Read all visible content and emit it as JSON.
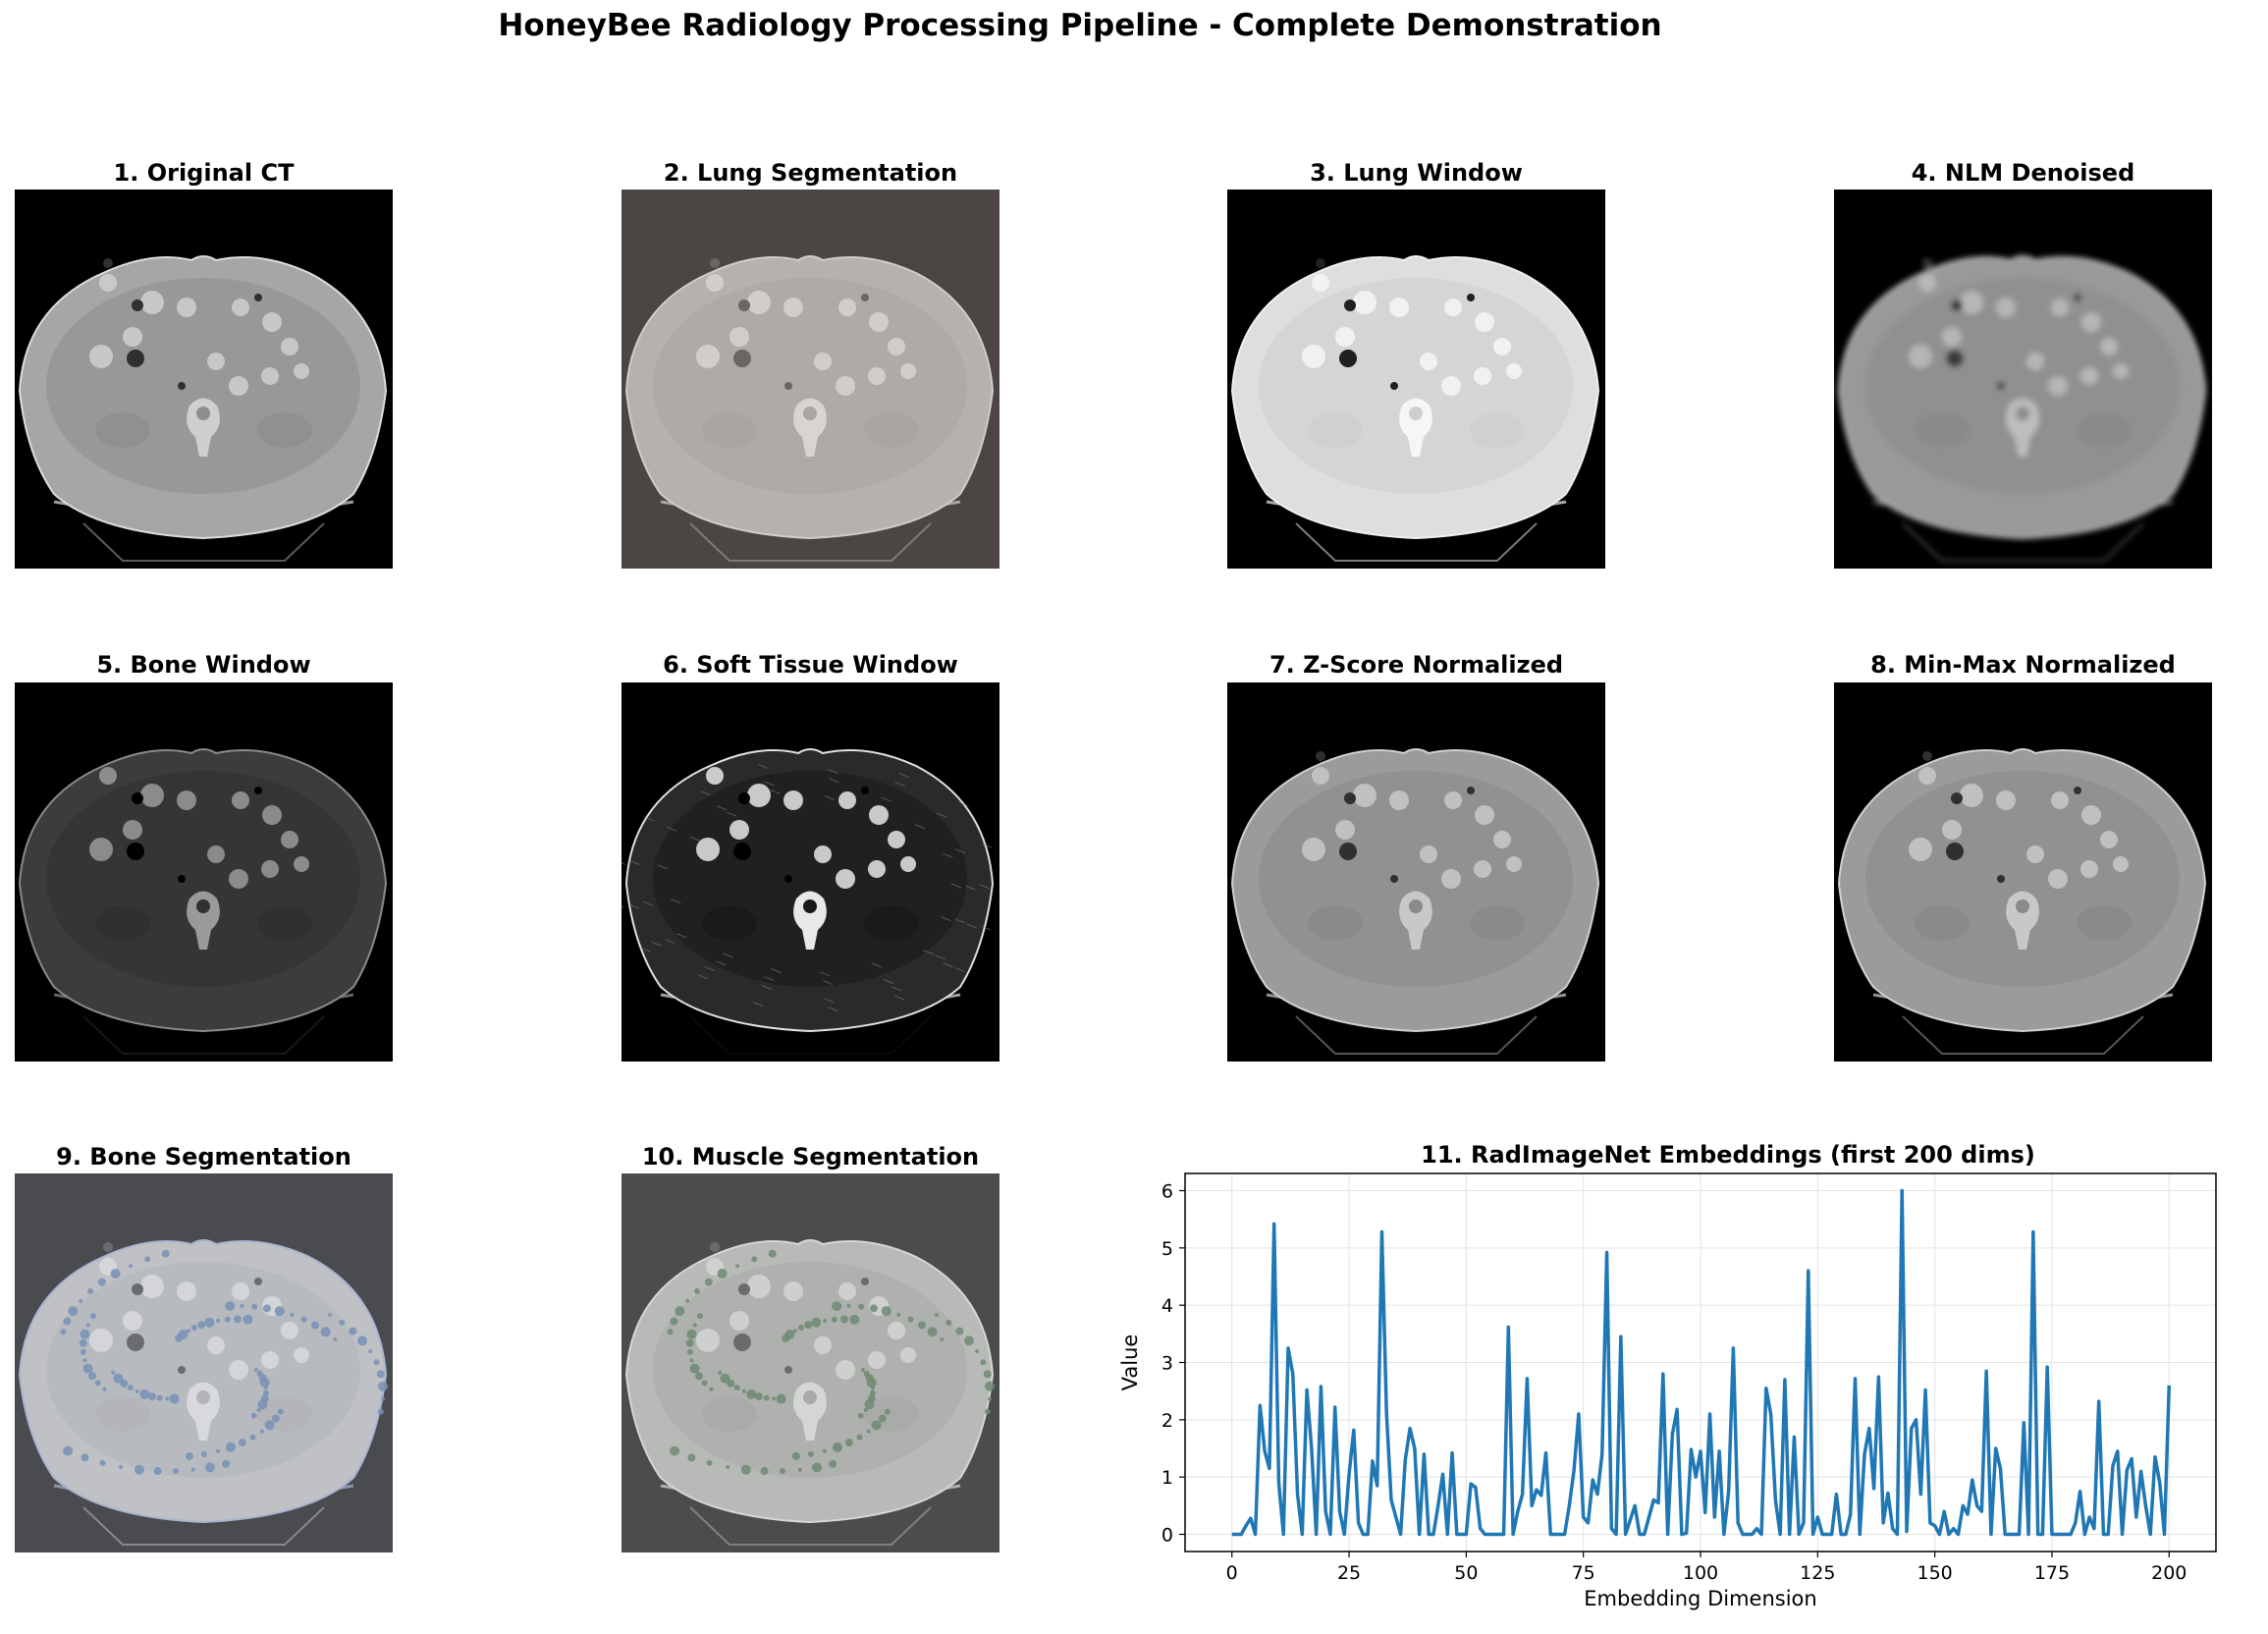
{
  "figure": {
    "title": "HoneyBee Radiology Processing Pipeline - Complete Demonstration"
  },
  "panels": [
    {
      "title": "1. Original CT",
      "style": "original",
      "background": "#000000"
    },
    {
      "title": "2. Lung Segmentation",
      "style": "lungseg",
      "background": "#4b4644"
    },
    {
      "title": "3. Lung Window",
      "style": "lungwin",
      "background": "#000000"
    },
    {
      "title": "4. NLM Denoised",
      "style": "denoised",
      "background": "#000000"
    },
    {
      "title": "5. Bone Window",
      "style": "bone",
      "background": "#000000"
    },
    {
      "title": "6. Soft Tissue Window",
      "style": "soft",
      "background": "#000000"
    },
    {
      "title": "7. Z-Score Normalized",
      "style": "zscore",
      "background": "#000000"
    },
    {
      "title": "8. Min-Max Normalized",
      "style": "minmax",
      "background": "#000000"
    },
    {
      "title": "9. Bone Segmentation",
      "style": "boneseg",
      "background": "#4a4b4f"
    },
    {
      "title": "10. Muscle Segmentation",
      "style": "muscleseg",
      "background": "#4b4d4a"
    }
  ],
  "chart_data": {
    "type": "line",
    "title": "11. RadImageNet Embeddings (first 200 dims)",
    "xlabel": "Embedding Dimension",
    "ylabel": "Value",
    "xlim": [
      -10,
      210
    ],
    "ylim": [
      -0.3,
      6.3
    ],
    "xticks": [
      0,
      25,
      50,
      75,
      100,
      125,
      150,
      175,
      200
    ],
    "yticks": [
      0,
      1,
      2,
      3,
      4,
      5,
      6
    ],
    "grid": true,
    "line_color": "#1f77b4",
    "series": [
      {
        "x_start": 0,
        "values": [
          0,
          0,
          0,
          0.15,
          0.28,
          0,
          2.25,
          1.45,
          1.15,
          5.42,
          0.9,
          0,
          3.25,
          2.8,
          0.7,
          0,
          2.52,
          1.5,
          0,
          2.58,
          0.4,
          0,
          2.22,
          0.4,
          0,
          1.05,
          1.82,
          0.2,
          0,
          0,
          1.28,
          0.85,
          5.28,
          2.1,
          0.6,
          0.3,
          0,
          1.3,
          1.85,
          1.5,
          0,
          1.4,
          0,
          0,
          0.5,
          1.05,
          0,
          1.42,
          0,
          0,
          0,
          0.88,
          0.82,
          0.1,
          0,
          0,
          0,
          0,
          0,
          3.62,
          0,
          0.4,
          0.7,
          2.72,
          0.5,
          0.78,
          0.68,
          1.42,
          0,
          0,
          0,
          0,
          0.5,
          1.12,
          2.1,
          0.3,
          0.2,
          0.95,
          0.7,
          1.4,
          4.92,
          0.1,
          0,
          3.45,
          0,
          0.25,
          0.5,
          0,
          0,
          0.3,
          0.6,
          0.55,
          2.8,
          0,
          1.75,
          2.18,
          0,
          0.02,
          1.48,
          1.0,
          1.45,
          0.38,
          2.1,
          0.3,
          1.45,
          0,
          0.75,
          3.25,
          0.2,
          0,
          0,
          0,
          0.1,
          0,
          2.55,
          2.1,
          0.6,
          0,
          2.7,
          0,
          1.7,
          0,
          0.2,
          4.6,
          0,
          0.3,
          0,
          0,
          0,
          0.7,
          0,
          0,
          0.35,
          2.72,
          0,
          1.4,
          1.85,
          0.8,
          2.75,
          0.2,
          0.72,
          0.1,
          0,
          6.0,
          0.05,
          1.85,
          2.0,
          0.7,
          2.52,
          0.2,
          0.15,
          0,
          0.4,
          0,
          0.1,
          0,
          0.5,
          0.35,
          0.95,
          0.5,
          0.4,
          2.85,
          0,
          1.5,
          1.15,
          0,
          0,
          0,
          0,
          1.95,
          0,
          5.28,
          0,
          0,
          2.92,
          0,
          0,
          0,
          0,
          0,
          0.2,
          0.75,
          0,
          0.3,
          0.1,
          2.32,
          0,
          0,
          1.2,
          1.45,
          0,
          1.12,
          1.32,
          0.3,
          1.1,
          0.5,
          0,
          1.35,
          0.9,
          0,
          2.6
        ]
      }
    ]
  }
}
